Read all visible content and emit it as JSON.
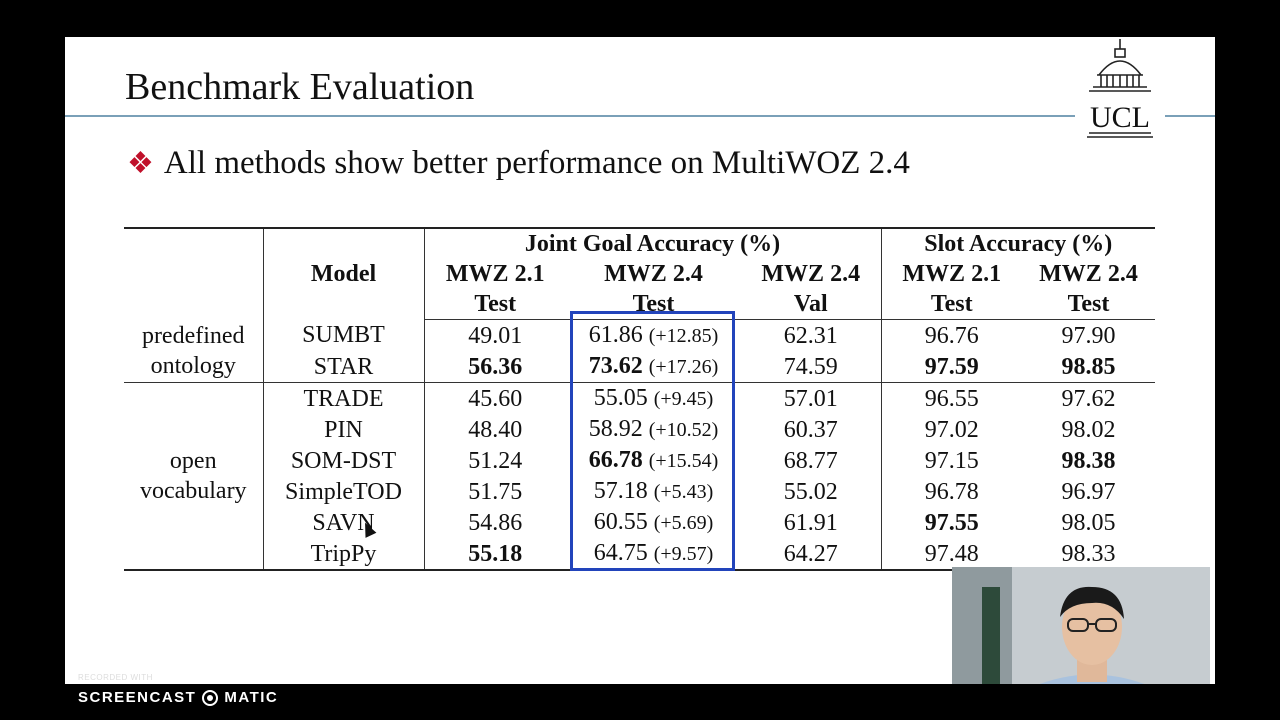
{
  "slide": {
    "title": "Benchmark Evaluation",
    "logo_text": "UCL",
    "bullet_mark": "❖",
    "bullet_text": "All methods show better performance on MultiWOZ 2.4"
  },
  "table": {
    "col_model": "Model",
    "group_jga": "Joint Goal Accuracy (%)",
    "group_sa": "Slot Accuracy (%)",
    "sub_headers": [
      {
        "line1": "MWZ 2.1",
        "line2": "Test"
      },
      {
        "line1": "MWZ 2.4",
        "line2": "Test"
      },
      {
        "line1": "MWZ 2.4",
        "line2": "Val"
      },
      {
        "line1": "MWZ 2.1",
        "line2": "Test"
      },
      {
        "line1": "MWZ 2.4",
        "line2": "Test"
      }
    ],
    "groups": [
      {
        "label_line1": "predefined",
        "label_line2": "ontology"
      },
      {
        "label_line1": "open",
        "label_line2": "vocabulary"
      }
    ],
    "rows": [
      {
        "model": "SUMBT",
        "jga21": "49.01",
        "jga24": "61.86",
        "gain": "(+12.85)",
        "val24": "62.31",
        "sa21": "96.76",
        "sa24": "97.90"
      },
      {
        "model": "STAR",
        "jga21": "56.36",
        "jga24": "73.62",
        "gain": "(+17.26)",
        "val24": "74.59",
        "sa21": "97.59",
        "sa24": "98.85"
      },
      {
        "model": "TRADE",
        "jga21": "45.60",
        "jga24": "55.05",
        "gain": "(+9.45)",
        "val24": "57.01",
        "sa21": "96.55",
        "sa24": "97.62"
      },
      {
        "model": "PIN",
        "jga21": "48.40",
        "jga24": "58.92",
        "gain": "(+10.52)",
        "val24": "60.37",
        "sa21": "97.02",
        "sa24": "98.02"
      },
      {
        "model": "SOM-DST",
        "jga21": "51.24",
        "jga24": "66.78",
        "gain": "(+15.54)",
        "val24": "68.77",
        "sa21": "97.15",
        "sa24": "98.38"
      },
      {
        "model": "SimpleTOD",
        "jga21": "51.75",
        "jga24": "57.18",
        "gain": "(+5.43)",
        "val24": "55.02",
        "sa21": "96.78",
        "sa24": "96.97"
      },
      {
        "model": "SAVN",
        "jga21": "54.86",
        "jga24": "60.55",
        "gain": "(+5.69)",
        "val24": "61.91",
        "sa21": "97.55",
        "sa24": "98.05"
      },
      {
        "model": "TripPy",
        "jga21": "55.18",
        "jga24": "64.75",
        "gain": "(+9.57)",
        "val24": "64.27",
        "sa21": "97.48",
        "sa24": "98.33"
      }
    ],
    "highlight_color": "#2244bb"
  },
  "recorder": {
    "small_label": "RECORDED WITH",
    "brand_left": "SCREENCAST",
    "brand_right": "MATIC"
  }
}
